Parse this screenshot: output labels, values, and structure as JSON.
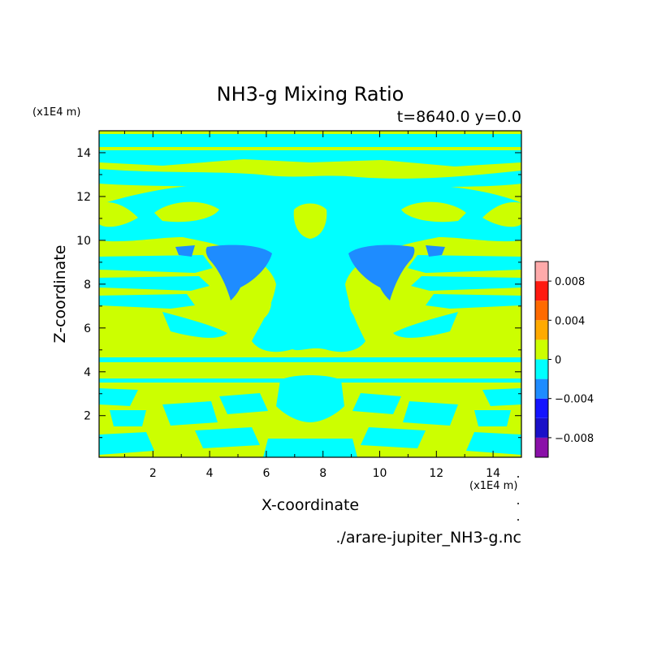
{
  "chart_data": {
    "type": "heatmap",
    "title": "NH3-g Mixing Ratio",
    "subtitle": "t=8640.0 y=0.0",
    "xlabel": "X-coordinate",
    "ylabel": "Z-coordinate",
    "x_unit": "(x1E4 m)",
    "y_unit": "(x1E4 m)",
    "xlim": [
      0.1,
      15
    ],
    "ylim": [
      0.1,
      15
    ],
    "x_ticks": [
      2,
      4,
      6,
      8,
      10,
      12,
      14
    ],
    "y_ticks": [
      2,
      4,
      6,
      8,
      10,
      12,
      14
    ],
    "source_file": "./arare-jupiter_NH3-g.nc",
    "colorbar": {
      "levels": [
        -0.01,
        -0.008,
        -0.006,
        -0.004,
        -0.002,
        0,
        0.002,
        0.004,
        0.006,
        0.008,
        0.01
      ],
      "tick_values": [
        -0.008,
        -0.004,
        0,
        0.004,
        0.008
      ],
      "tick_labels": [
        "−0.008",
        "−0.004",
        "0",
        "0.004",
        "0.008"
      ],
      "colors": [
        "#8a10a8",
        "#1a10c8",
        "#1414ff",
        "#1e8cff",
        "#00ffff",
        "#ccff00",
        "#ffaa00",
        "#ff6a00",
        "#ff1a10",
        "#ffaaaa"
      ]
    },
    "field_regions": [
      {
        "value": 0.0004,
        "color": "#ccff00",
        "desc": "background near zero positive"
      },
      {
        "value": -0.0012,
        "color": "#00ffff",
        "desc": "slightly negative regions"
      },
      {
        "value": -0.003,
        "color": "#1e8cff",
        "desc": "negative pockets near x=4.5 and x=10.5, z≈8.5"
      }
    ]
  }
}
